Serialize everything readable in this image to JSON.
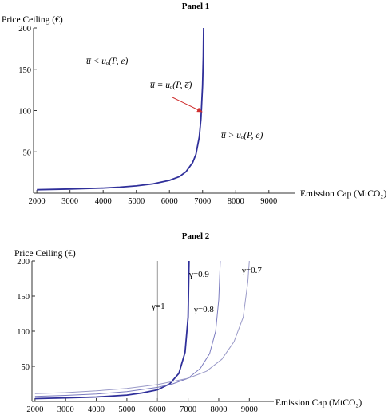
{
  "chart_data": [
    {
      "type": "line",
      "title": "Panel 1",
      "ylabel": "Price Ceiling (€)",
      "xlabel": "Emission Cap (MtCO₂)",
      "xlim": [
        1900,
        9800
      ],
      "ylim": [
        0,
        200
      ],
      "xticks": [
        "2000",
        "3000",
        "4000",
        "5000",
        "6000",
        "7000",
        "8000",
        "9000"
      ],
      "yticks": [
        "50",
        "100",
        "150",
        "200"
      ],
      "grid": false,
      "series": [
        {
          "color": "#2f2f9a",
          "points": [
            [
              2000,
              4.2
            ],
            [
              3000,
              5.0
            ],
            [
              4000,
              6.2
            ],
            [
              4500,
              7.2
            ],
            [
              5000,
              8.8
            ],
            [
              5500,
              11.2
            ],
            [
              6000,
              15.5
            ],
            [
              6300,
              20
            ],
            [
              6500,
              26
            ],
            [
              6700,
              37
            ],
            [
              6800,
              47
            ],
            [
              6900,
              68
            ],
            [
              6950,
              90
            ],
            [
              7000,
              130
            ],
            [
              7020,
              165
            ],
            [
              7030,
              200
            ]
          ]
        }
      ],
      "annotations": [
        {
          "text": "u̅ < uₒ(P, e)",
          "x": 3200,
          "y": 160
        },
        {
          "text": "u̅ = uₒ(P̅, e̅)",
          "x": 5700,
          "y": 127
        },
        {
          "text": "u̅ > uₒ(P, e)",
          "x": 7900,
          "y": 70
        }
      ]
    },
    {
      "type": "line",
      "title": "Panel 2",
      "ylabel": "Price Ceiling (€)",
      "xlabel": "Emission Cap (MtCO₂)",
      "xlim": [
        1900,
        9800
      ],
      "ylim": [
        0,
        200
      ],
      "xticks": [
        "2000",
        "3000",
        "4000",
        "5000",
        "6000",
        "7000",
        "8000",
        "9000"
      ],
      "yticks": [
        "50",
        "100",
        "150",
        "200"
      ],
      "grid": false,
      "series": [
        {
          "label": "γ=1",
          "color": "#999999",
          "points": [
            [
              6000,
              0
            ],
            [
              6000,
              200
            ]
          ]
        },
        {
          "label": "γ=0.9",
          "color": "#2f2f9a",
          "points": [
            [
              2000,
              4
            ],
            [
              3000,
              5
            ],
            [
              4000,
              6.2
            ],
            [
              5000,
              9
            ],
            [
              5500,
              12
            ],
            [
              6000,
              16.5
            ],
            [
              6400,
              25
            ],
            [
              6700,
              40
            ],
            [
              6900,
              70
            ],
            [
              7000,
              120
            ],
            [
              7030,
              200
            ]
          ]
        },
        {
          "label": "γ=0.8",
          "color": "#7b7bbf",
          "points": [
            [
              2000,
              7
            ],
            [
              3000,
              8.5
            ],
            [
              4000,
              10.5
            ],
            [
              5000,
              14
            ],
            [
              6000,
              20
            ],
            [
              6500,
              25
            ],
            [
              7000,
              33
            ],
            [
              7400,
              47
            ],
            [
              7700,
              68
            ],
            [
              7900,
              100
            ],
            [
              8000,
              145
            ],
            [
              8050,
              200
            ]
          ]
        },
        {
          "label": "γ=0.7",
          "color": "#9a9ac8",
          "points": [
            [
              2000,
              11
            ],
            [
              3000,
              12.5
            ],
            [
              4000,
              15
            ],
            [
              5000,
              18.5
            ],
            [
              6000,
              24
            ],
            [
              7000,
              33
            ],
            [
              7600,
              43
            ],
            [
              8100,
              60
            ],
            [
              8500,
              85
            ],
            [
              8800,
              120
            ],
            [
              8950,
              170
            ],
            [
              9000,
              200
            ]
          ]
        }
      ]
    }
  ]
}
